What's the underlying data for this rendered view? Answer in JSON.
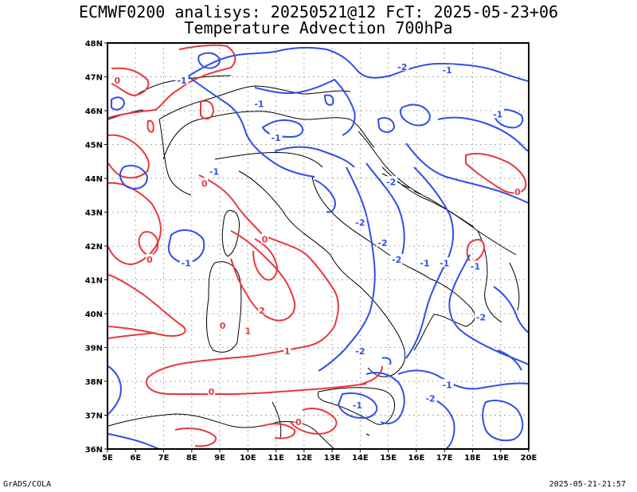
{
  "header": {
    "line1": "ECMWF0200 analisys: 20250521@12 FcT: 2025-05-23+06",
    "line2": "Temperature Advection 700hPa"
  },
  "footer": {
    "left": "GrADS/COLA",
    "right": "2025-05-21-21:57"
  },
  "axes": {
    "lon_labels": [
      "5E",
      "6E",
      "7E",
      "8E",
      "9E",
      "10E",
      "11E",
      "12E",
      "13E",
      "14E",
      "15E",
      "16E",
      "17E",
      "18E",
      "19E",
      "20E"
    ],
    "lat_labels": [
      "36N",
      "37N",
      "38N",
      "39N",
      "40N",
      "41N",
      "42N",
      "43N",
      "44N",
      "45N",
      "46N",
      "47N",
      "48N"
    ],
    "lon_range": [
      5,
      20
    ],
    "lat_range": [
      36,
      48
    ],
    "grid": "dotted, every 1 degree"
  },
  "contours": {
    "positive_color": "#e8383c",
    "negative_color": "#2f4fe8",
    "border_color": "#000000",
    "labels": [
      {
        "text": "0",
        "lon": 5.35,
        "lat": 46.9,
        "sign": "pos"
      },
      {
        "text": "-1",
        "lon": 7.65,
        "lat": 46.9,
        "sign": "neg"
      },
      {
        "text": "-2",
        "lon": 15.5,
        "lat": 47.3,
        "sign": "neg"
      },
      {
        "text": "-1",
        "lon": 17.1,
        "lat": 47.2,
        "sign": "neg"
      },
      {
        "text": "-1",
        "lon": 10.4,
        "lat": 46.2,
        "sign": "neg"
      },
      {
        "text": "-1",
        "lon": 18.9,
        "lat": 45.9,
        "sign": "neg"
      },
      {
        "text": "-1",
        "lon": 11.0,
        "lat": 45.2,
        "sign": "neg"
      },
      {
        "text": "0",
        "lon": 8.45,
        "lat": 43.85,
        "sign": "pos"
      },
      {
        "text": "-1",
        "lon": 8.8,
        "lat": 44.2,
        "sign": "neg"
      },
      {
        "text": "-2",
        "lon": 15.1,
        "lat": 43.9,
        "sign": "neg"
      },
      {
        "text": "0",
        "lon": 19.6,
        "lat": 43.6,
        "sign": "pos"
      },
      {
        "text": "-2",
        "lon": 14.0,
        "lat": 42.7,
        "sign": "neg"
      },
      {
        "text": "-2",
        "lon": 14.8,
        "lat": 42.1,
        "sign": "neg"
      },
      {
        "text": "0",
        "lon": 10.6,
        "lat": 42.2,
        "sign": "pos"
      },
      {
        "text": "0",
        "lon": 6.5,
        "lat": 41.6,
        "sign": "pos"
      },
      {
        "text": "-1",
        "lon": 7.8,
        "lat": 41.5,
        "sign": "neg"
      },
      {
        "text": "-2",
        "lon": 15.3,
        "lat": 41.6,
        "sign": "neg"
      },
      {
        "text": "-1",
        "lon": 16.3,
        "lat": 41.5,
        "sign": "neg"
      },
      {
        "text": "-1",
        "lon": 17.0,
        "lat": 41.5,
        "sign": "neg"
      },
      {
        "text": "-1",
        "lon": 18.1,
        "lat": 41.4,
        "sign": "neg"
      },
      {
        "text": "2",
        "lon": 10.5,
        "lat": 40.1,
        "sign": "pos"
      },
      {
        "text": "0",
        "lon": 9.1,
        "lat": 39.65,
        "sign": "pos"
      },
      {
        "text": "1",
        "lon": 10.0,
        "lat": 39.5,
        "sign": "pos"
      },
      {
        "text": "-2",
        "lon": 18.3,
        "lat": 39.9,
        "sign": "neg"
      },
      {
        "text": "1",
        "lon": 11.4,
        "lat": 38.9,
        "sign": "pos"
      },
      {
        "text": "-2",
        "lon": 14.0,
        "lat": 38.9,
        "sign": "neg"
      },
      {
        "text": "0",
        "lon": 8.7,
        "lat": 37.7,
        "sign": "pos"
      },
      {
        "text": "-1",
        "lon": 17.1,
        "lat": 37.9,
        "sign": "neg"
      },
      {
        "text": "-2",
        "lon": 16.5,
        "lat": 37.5,
        "sign": "neg"
      },
      {
        "text": "-1",
        "lon": 13.9,
        "lat": 37.3,
        "sign": "neg"
      },
      {
        "text": "0",
        "lon": 11.8,
        "lat": 36.8,
        "sign": "pos"
      }
    ]
  }
}
